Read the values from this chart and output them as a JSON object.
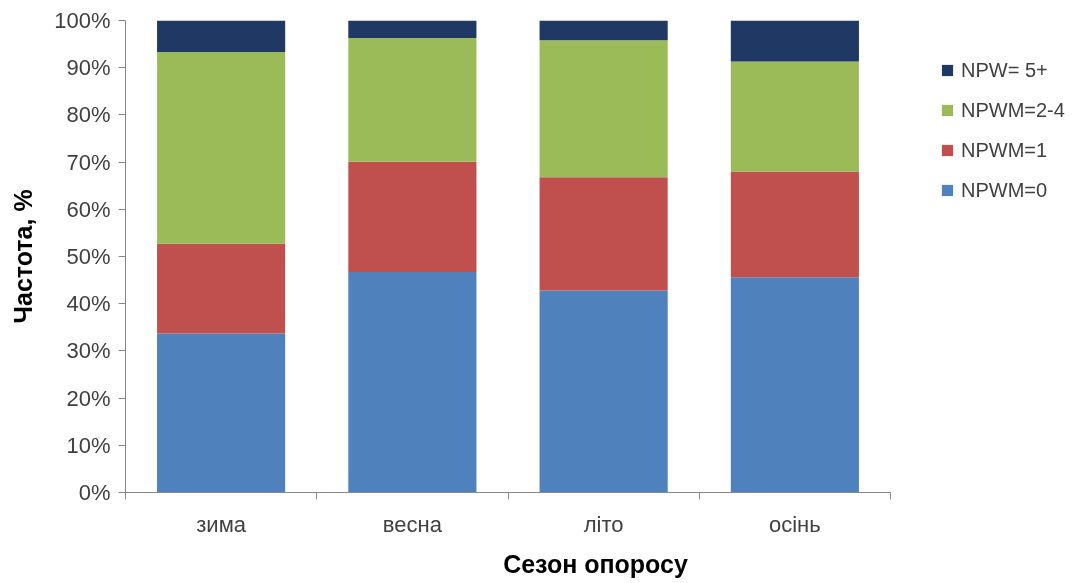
{
  "chart_data": {
    "type": "bar",
    "stacked": true,
    "xlabel": "Сезон опоросу",
    "ylabel": "Частота, %",
    "categories": [
      "зима",
      "весна",
      "літо",
      "осінь"
    ],
    "series": [
      {
        "name": "NPWM=0",
        "color": "#4f81bd",
        "values": [
          33.7,
          46.7,
          42.8,
          45.6
        ]
      },
      {
        "name": "NPWM=1",
        "color": "#c0504d",
        "values": [
          19.0,
          23.4,
          24.0,
          22.4
        ]
      },
      {
        "name": "NPWM=2-4",
        "color": "#9bbb59",
        "values": [
          40.6,
          26.2,
          29.0,
          23.3
        ]
      },
      {
        "name": "NPW= 5+",
        "color": "#1f3864",
        "values": [
          6.7,
          3.7,
          4.2,
          8.7
        ]
      }
    ],
    "ylim": [
      0,
      100
    ],
    "yticks": [
      {
        "value": 0,
        "label": "0%"
      },
      {
        "value": 10,
        "label": "10%"
      },
      {
        "value": 20,
        "label": "20%"
      },
      {
        "value": 30,
        "label": "30%"
      },
      {
        "value": 40,
        "label": "40%"
      },
      {
        "value": 50,
        "label": "50%"
      },
      {
        "value": 60,
        "label": "60%"
      },
      {
        "value": 70,
        "label": "70%"
      },
      {
        "value": 80,
        "label": "80%"
      },
      {
        "value": 90,
        "label": "90%"
      },
      {
        "value": 100,
        "label": "100%"
      }
    ],
    "grid": false,
    "legend": "top right"
  }
}
